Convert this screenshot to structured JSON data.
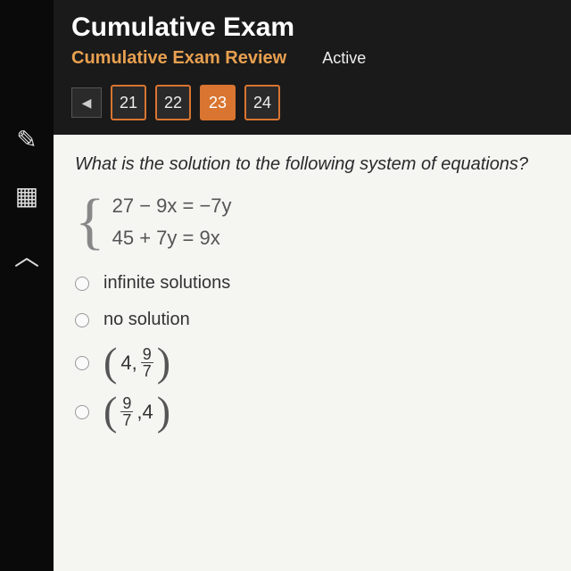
{
  "toolbar": {
    "pencil": "✎",
    "calc": "▦",
    "caret": "︿"
  },
  "header": {
    "title": "Cumulative Exam",
    "subtitle": "Cumulative Exam Review",
    "status": "Active"
  },
  "nav": {
    "arrow": "◀",
    "items": [
      "21",
      "22",
      "23",
      "24"
    ],
    "active_index": 2
  },
  "question": {
    "text": "What is the solution to the following system of equations?",
    "eq1": "27 − 9x = −7y",
    "eq2": "45 + 7y = 9x"
  },
  "options": {
    "a": "infinite solutions",
    "b": "no solution",
    "c_lead": "4,",
    "c_num": "9",
    "c_den": "7",
    "d_num": "9",
    "d_den": "7",
    "d_tail": ",4"
  },
  "colors": {
    "accent": "#d97530",
    "bg_dark": "#1a1a1a",
    "bg_light": "#f5f5f2"
  }
}
